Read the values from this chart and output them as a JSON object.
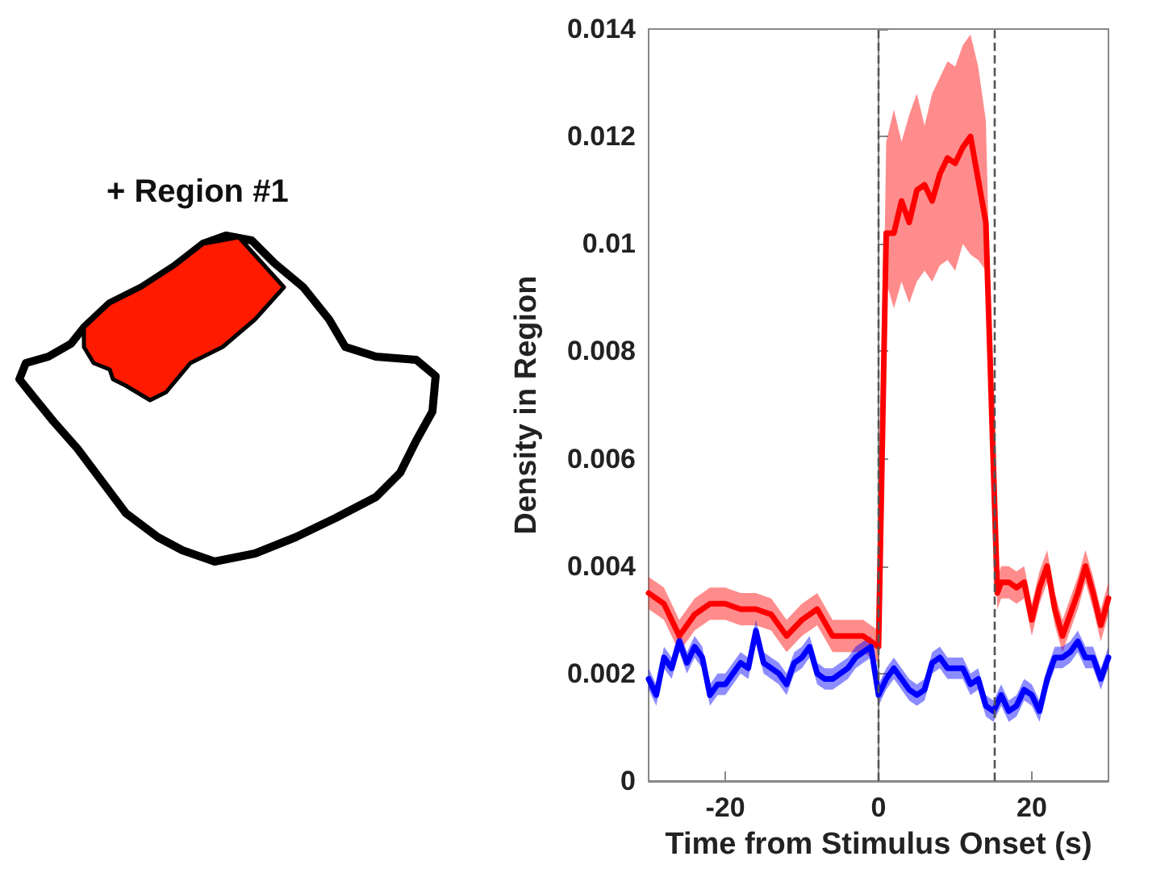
{
  "chart_data": {
    "type": "line",
    "xlabel": "Time from Stimulus Onset (s)",
    "ylabel": "Density in Region",
    "annotations": [
      "+ Region #1"
    ],
    "xlim": [
      -30,
      30
    ],
    "xticks": [
      -20,
      0,
      20
    ],
    "ylim": [
      0,
      0.014
    ],
    "yticks": [
      0,
      0.002,
      0.004,
      0.006,
      0.008,
      0.01,
      0.012,
      0.014
    ],
    "grid": false,
    "marker": "none",
    "line_style": "solid",
    "ref_lines": [
      {
        "axis": "x",
        "value": 0,
        "color": "#555555",
        "line_style": "dashed"
      },
      {
        "axis": "x",
        "value": 15,
        "color": "#555555",
        "line_style": "dashed"
      }
    ],
    "series": [
      {
        "color": "#ff0000",
        "x": [
          -30,
          -28,
          -26,
          -24,
          -22,
          -20,
          -18,
          -16,
          -14,
          -12,
          -10,
          -8,
          -6,
          -4,
          -2,
          0,
          1,
          2,
          3,
          4,
          5,
          6,
          7,
          8,
          9,
          10,
          11,
          12,
          13,
          14,
          15.5,
          16,
          17,
          18,
          19,
          20,
          21,
          22,
          23,
          24,
          25,
          26,
          27,
          28,
          29,
          30
        ],
        "values": [
          0.0035,
          0.0033,
          0.0027,
          0.0031,
          0.0033,
          0.0033,
          0.0032,
          0.0032,
          0.0031,
          0.0027,
          0.003,
          0.0032,
          0.0027,
          0.0027,
          0.0027,
          0.0025,
          0.0102,
          0.0102,
          0.0108,
          0.0104,
          0.011,
          0.0111,
          0.0108,
          0.0113,
          0.0116,
          0.0115,
          0.0118,
          0.012,
          0.0112,
          0.0104,
          0.0035,
          0.0037,
          0.0037,
          0.0036,
          0.0037,
          0.003,
          0.0036,
          0.004,
          0.0032,
          0.0027,
          0.0031,
          0.0035,
          0.004,
          0.0035,
          0.0029,
          0.0034
        ],
        "lower": [
          0.0032,
          0.003,
          0.0024,
          0.0028,
          0.003,
          0.003,
          0.0029,
          0.0029,
          0.0028,
          0.0024,
          0.0027,
          0.0029,
          0.0024,
          0.0024,
          0.0024,
          0.0022,
          0.0093,
          0.0088,
          0.0093,
          0.0089,
          0.0093,
          0.0095,
          0.0093,
          0.0096,
          0.0097,
          0.0095,
          0.01,
          0.0098,
          0.0097,
          0.0095,
          0.0032,
          0.0034,
          0.0034,
          0.0033,
          0.0034,
          0.0027,
          0.0033,
          0.0037,
          0.0029,
          0.0024,
          0.0028,
          0.0032,
          0.0037,
          0.0032,
          0.0026,
          0.0031
        ],
        "upper": [
          0.0038,
          0.0036,
          0.003,
          0.0034,
          0.0036,
          0.0036,
          0.0035,
          0.0035,
          0.0034,
          0.003,
          0.0033,
          0.0035,
          0.003,
          0.003,
          0.003,
          0.0028,
          0.0119,
          0.0125,
          0.0119,
          0.0124,
          0.0128,
          0.0122,
          0.0128,
          0.0131,
          0.0134,
          0.0133,
          0.0137,
          0.0139,
          0.0133,
          0.0123,
          0.0038,
          0.004,
          0.004,
          0.0039,
          0.004,
          0.0033,
          0.0039,
          0.0043,
          0.0035,
          0.003,
          0.0034,
          0.0038,
          0.0043,
          0.0038,
          0.0032,
          0.0037
        ]
      },
      {
        "color": "#0000ff",
        "x": [
          -30,
          -29,
          -28,
          -27,
          -26,
          -25,
          -24,
          -23,
          -22,
          -21,
          -20,
          -19,
          -18,
          -17,
          -16,
          -15,
          -14,
          -13,
          -12,
          -11,
          -10,
          -9,
          -8,
          -7,
          -6,
          -5,
          -4,
          -3,
          -2,
          -1,
          0,
          1,
          2,
          3,
          4,
          5,
          6,
          7,
          8,
          9,
          10,
          11,
          12,
          13,
          14,
          15,
          16,
          17,
          18,
          19,
          20,
          21,
          22,
          23,
          24,
          25,
          26,
          27,
          28,
          29,
          30
        ],
        "values": [
          0.0019,
          0.0016,
          0.0023,
          0.0021,
          0.0026,
          0.0022,
          0.0025,
          0.0023,
          0.0016,
          0.0018,
          0.0018,
          0.002,
          0.0022,
          0.0021,
          0.0028,
          0.0022,
          0.0021,
          0.002,
          0.0018,
          0.0022,
          0.0023,
          0.0025,
          0.002,
          0.0019,
          0.0019,
          0.002,
          0.0021,
          0.0023,
          0.0024,
          0.0025,
          0.0016,
          0.0019,
          0.0021,
          0.0019,
          0.0017,
          0.0016,
          0.0017,
          0.0022,
          0.0023,
          0.0021,
          0.0021,
          0.0021,
          0.0018,
          0.0019,
          0.0014,
          0.0013,
          0.0016,
          0.0013,
          0.0014,
          0.0017,
          0.0016,
          0.0013,
          0.0019,
          0.0023,
          0.0023,
          0.0024,
          0.0026,
          0.0023,
          0.0023,
          0.0019,
          0.0023
        ],
        "lower": [
          0.0017,
          0.0014,
          0.0021,
          0.0019,
          0.0024,
          0.002,
          0.0023,
          0.0021,
          0.0014,
          0.0016,
          0.0016,
          0.0018,
          0.002,
          0.0019,
          0.0026,
          0.002,
          0.0019,
          0.0018,
          0.0016,
          0.002,
          0.0021,
          0.0023,
          0.0018,
          0.0017,
          0.0017,
          0.0018,
          0.0019,
          0.0021,
          0.0022,
          0.0023,
          0.0014,
          0.0017,
          0.0019,
          0.0017,
          0.0015,
          0.0014,
          0.0015,
          0.002,
          0.0021,
          0.0019,
          0.0019,
          0.0019,
          0.0016,
          0.0017,
          0.0012,
          0.0011,
          0.0014,
          0.0011,
          0.0012,
          0.0015,
          0.0014,
          0.0011,
          0.0017,
          0.0021,
          0.0021,
          0.0022,
          0.0024,
          0.0021,
          0.0021,
          0.0017,
          0.0021
        ],
        "upper": [
          0.0021,
          0.0018,
          0.0025,
          0.0023,
          0.0028,
          0.0024,
          0.0027,
          0.0025,
          0.0018,
          0.002,
          0.002,
          0.0022,
          0.0024,
          0.0023,
          0.003,
          0.0024,
          0.0023,
          0.0022,
          0.002,
          0.0024,
          0.0025,
          0.0027,
          0.0022,
          0.0021,
          0.0021,
          0.0022,
          0.0023,
          0.0025,
          0.0026,
          0.0027,
          0.0018,
          0.0021,
          0.0023,
          0.0021,
          0.0019,
          0.0018,
          0.0019,
          0.0024,
          0.0025,
          0.0023,
          0.0023,
          0.0023,
          0.002,
          0.0021,
          0.0016,
          0.0015,
          0.0018,
          0.0015,
          0.0016,
          0.0019,
          0.0018,
          0.0015,
          0.0021,
          0.0025,
          0.0025,
          0.0026,
          0.0028,
          0.0025,
          0.0025,
          0.0021,
          0.0025
        ]
      }
    ]
  }
}
